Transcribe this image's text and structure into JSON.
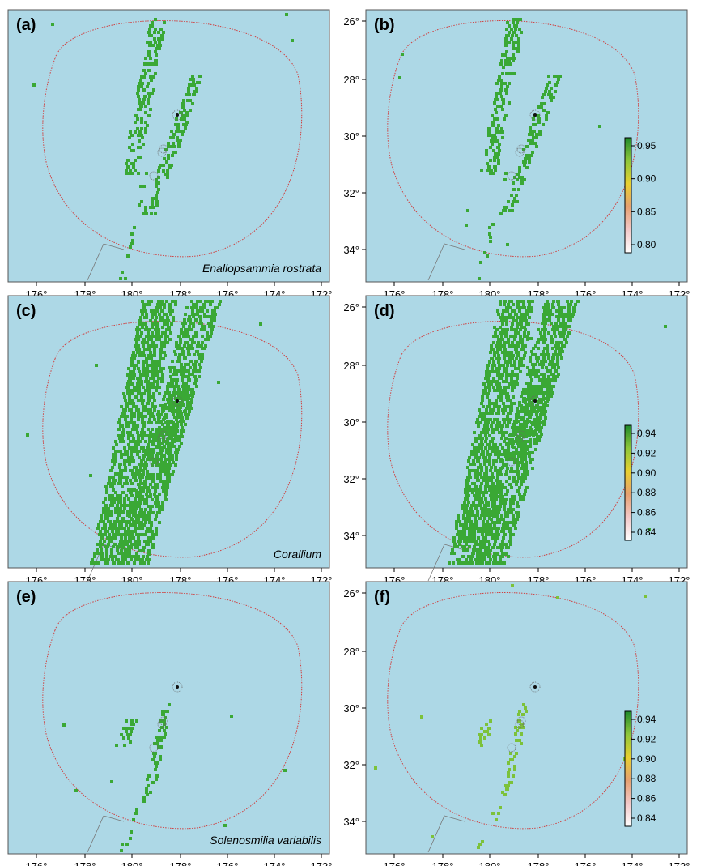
{
  "figure": {
    "sea_color": "#add8e6",
    "habitat_color": "#3aa835",
    "eez_color": "#d04040",
    "x_tick_labels": [
      "176°",
      "178°",
      "180°",
      "178°",
      "176°",
      "174°",
      "172°"
    ],
    "y_tick_labels": [
      "26°",
      "28°",
      "30°",
      "32°",
      "34°"
    ],
    "rows": [
      {
        "left": {
          "label": "(a)",
          "species": "Enallopsammia rostrata"
        },
        "right": {
          "label": "(b)",
          "colorbar": {
            "ticks": [
              "0.95",
              "0.90",
              "0.85",
              "0.80"
            ]
          }
        }
      },
      {
        "left": {
          "label": "(c)",
          "species": "Corallium"
        },
        "right": {
          "label": "(d)",
          "colorbar": {
            "ticks": [
              "0.94",
              "0.92",
              "0.90",
              "0.88",
              "0.86",
              "0.84"
            ]
          }
        }
      },
      {
        "left": {
          "label": "(e)",
          "species": "Solenosmilia variabilis"
        },
        "right": {
          "label": "(f)",
          "colorbar": {
            "ticks": [
              "0.94",
              "0.92",
              "0.90",
              "0.88",
              "0.86",
              "0.84"
            ]
          }
        }
      }
    ]
  }
}
